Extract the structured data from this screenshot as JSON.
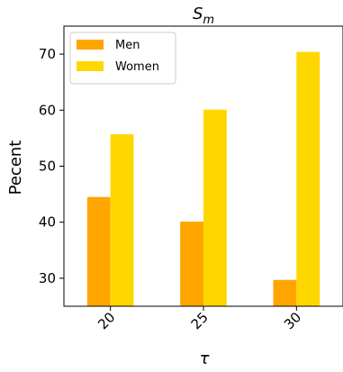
{
  "chart_data": {
    "type": "bar",
    "title_main": "S",
    "title_sub": "m",
    "xlabel": "τ",
    "ylabel": "Pecent",
    "categories": [
      "20",
      "25",
      "30"
    ],
    "series": [
      {
        "name": "Men",
        "color": "#FFA500",
        "values": [
          44.5,
          40.1,
          29.7
        ]
      },
      {
        "name": "Women",
        "color": "#FFD700",
        "values": [
          55.7,
          60.1,
          70.4
        ]
      }
    ],
    "ylim": [
      25,
      75
    ],
    "yticks": [
      30,
      40,
      50,
      60,
      70
    ],
    "grid": false,
    "legend_position": "upper-left"
  }
}
